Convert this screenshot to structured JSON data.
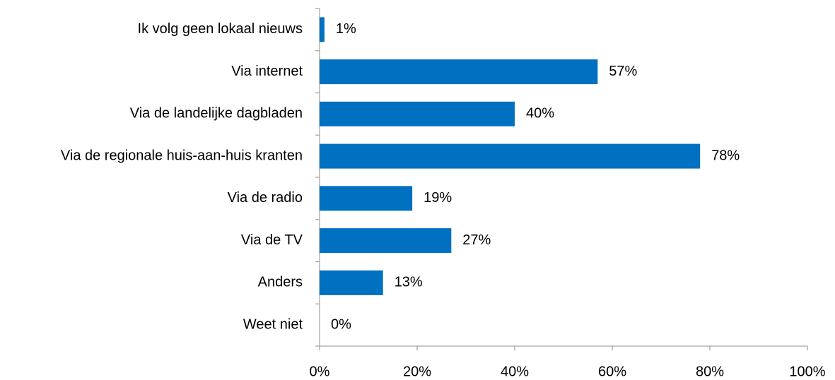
{
  "chart_data": {
    "type": "barh",
    "categories": [
      "Ik volg geen lokaal nieuws",
      "Via internet",
      "Via de landelijke dagbladen",
      "Via de regionale huis-aan-huis kranten",
      "Via de radio",
      "Via de TV",
      "Anders",
      "Weet niet"
    ],
    "values": [
      1,
      57,
      40,
      78,
      19,
      27,
      13,
      0
    ],
    "value_labels": [
      "1%",
      "57%",
      "40%",
      "78%",
      "19%",
      "27%",
      "13%",
      "0%"
    ],
    "color": "#0070c0",
    "xlim": [
      0,
      100
    ],
    "xticks": [
      {
        "value": 0,
        "label": "0%"
      },
      {
        "value": 20,
        "label": "20%"
      },
      {
        "value": 40,
        "label": "40%"
      },
      {
        "value": 60,
        "label": "60%"
      },
      {
        "value": 80,
        "label": "80%"
      },
      {
        "value": 100,
        "label": "100%"
      }
    ],
    "grid": false
  }
}
